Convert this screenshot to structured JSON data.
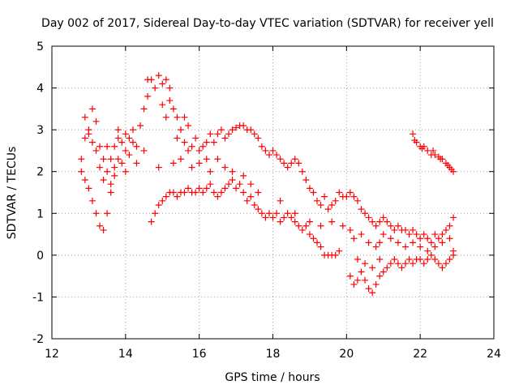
{
  "chart_data": {
    "type": "scatter",
    "title": "Day 002 of 2017, Sidereal Day-to-day VTEC variation (SDTVAR) for receiver yell",
    "xlabel": "GPS time / hours",
    "ylabel": "SDTVAR / TECUs",
    "xlim": [
      12,
      24
    ],
    "ylim": [
      -2,
      5
    ],
    "x_ticks": [
      "12",
      "14",
      "16",
      "18",
      "20",
      "22",
      "24"
    ],
    "y_ticks": [
      "-2",
      "-1",
      "0",
      "1",
      "2",
      "3",
      "4",
      "5"
    ],
    "grid": true,
    "marker": "+",
    "marker_color": "#ff0000",
    "series": [
      {
        "name": "upper-track",
        "points": [
          [
            12.8,
            2.3
          ],
          [
            12.9,
            2.8
          ],
          [
            13.0,
            3.0
          ],
          [
            13.1,
            2.7
          ],
          [
            13.2,
            3.2
          ],
          [
            13.3,
            2.6
          ],
          [
            13.4,
            2.3
          ],
          [
            13.5,
            2.0
          ],
          [
            13.6,
            2.3
          ],
          [
            13.7,
            2.6
          ],
          [
            13.8,
            3.0
          ],
          [
            13.9,
            2.7
          ],
          [
            14.0,
            2.5
          ],
          [
            14.1,
            2.8
          ],
          [
            14.2,
            3.0
          ],
          [
            14.3,
            2.6
          ],
          [
            14.4,
            3.1
          ],
          [
            14.5,
            3.5
          ],
          [
            14.6,
            3.8
          ],
          [
            14.7,
            4.2
          ],
          [
            14.8,
            4.0
          ],
          [
            14.9,
            4.3
          ],
          [
            15.0,
            4.1
          ],
          [
            15.1,
            4.2
          ],
          [
            15.2,
            4.0
          ],
          [
            15.3,
            3.5
          ],
          [
            15.4,
            3.3
          ],
          [
            15.5,
            3.0
          ],
          [
            15.6,
            2.7
          ],
          [
            15.7,
            2.5
          ],
          [
            15.8,
            2.6
          ],
          [
            15.9,
            2.8
          ],
          [
            16.0,
            2.5
          ],
          [
            16.1,
            2.6
          ],
          [
            16.2,
            2.7
          ],
          [
            16.3,
            2.9
          ],
          [
            16.4,
            2.7
          ],
          [
            16.5,
            2.9
          ],
          [
            16.6,
            3.0
          ],
          [
            16.7,
            2.8
          ],
          [
            16.8,
            2.9
          ],
          [
            16.9,
            3.0
          ],
          [
            17.0,
            3.05
          ],
          [
            17.1,
            3.1
          ],
          [
            17.2,
            3.1
          ],
          [
            17.3,
            3.0
          ],
          [
            17.4,
            3.0
          ],
          [
            17.5,
            2.9
          ],
          [
            17.6,
            2.8
          ],
          [
            17.7,
            2.6
          ],
          [
            17.8,
            2.5
          ],
          [
            17.9,
            2.4
          ],
          [
            18.0,
            2.5
          ],
          [
            18.1,
            2.4
          ],
          [
            18.2,
            2.3
          ],
          [
            18.3,
            2.2
          ],
          [
            18.4,
            2.1
          ],
          [
            18.5,
            2.2
          ],
          [
            18.6,
            2.3
          ],
          [
            18.7,
            2.2
          ],
          [
            18.8,
            2.0
          ],
          [
            18.9,
            1.8
          ],
          [
            19.0,
            1.6
          ],
          [
            19.1,
            1.5
          ],
          [
            19.2,
            1.3
          ],
          [
            19.3,
            1.2
          ],
          [
            19.4,
            1.4
          ],
          [
            19.5,
            1.1
          ],
          [
            19.6,
            1.2
          ],
          [
            19.7,
            1.3
          ],
          [
            19.8,
            1.5
          ],
          [
            19.9,
            1.4
          ],
          [
            20.0,
            1.4
          ],
          [
            20.1,
            1.5
          ],
          [
            20.2,
            1.4
          ],
          [
            20.3,
            1.3
          ],
          [
            20.4,
            1.1
          ],
          [
            20.5,
            1.0
          ],
          [
            20.6,
            0.9
          ],
          [
            20.7,
            0.8
          ],
          [
            20.8,
            0.7
          ],
          [
            20.9,
            0.8
          ],
          [
            21.0,
            0.9
          ],
          [
            21.1,
            0.8
          ],
          [
            21.2,
            0.7
          ],
          [
            21.3,
            0.6
          ],
          [
            21.4,
            0.7
          ],
          [
            21.5,
            0.6
          ],
          [
            21.6,
            0.6
          ],
          [
            21.7,
            0.5
          ],
          [
            21.8,
            0.6
          ],
          [
            21.9,
            0.5
          ],
          [
            22.0,
            0.4
          ],
          [
            22.1,
            0.5
          ],
          [
            22.2,
            0.4
          ],
          [
            22.3,
            0.3
          ],
          [
            22.4,
            0.5
          ],
          [
            22.5,
            0.4
          ],
          [
            22.6,
            0.5
          ],
          [
            22.7,
            0.6
          ],
          [
            22.8,
            0.7
          ],
          [
            22.9,
            0.9
          ]
        ]
      },
      {
        "name": "lower-track",
        "points": [
          [
            12.8,
            2.0
          ],
          [
            12.9,
            1.8
          ],
          [
            13.0,
            1.6
          ],
          [
            13.1,
            1.3
          ],
          [
            13.2,
            1.0
          ],
          [
            13.3,
            0.7
          ],
          [
            13.4,
            0.6
          ],
          [
            13.5,
            1.0
          ],
          [
            13.6,
            1.5
          ],
          [
            13.7,
            1.9
          ],
          [
            13.8,
            2.3
          ],
          [
            13.9,
            2.2
          ],
          [
            14.0,
            2.0
          ],
          [
            14.1,
            2.4
          ],
          [
            14.2,
            2.7
          ],
          [
            14.7,
            0.8
          ],
          [
            14.8,
            1.0
          ],
          [
            14.9,
            1.2
          ],
          [
            15.0,
            1.3
          ],
          [
            15.1,
            1.4
          ],
          [
            15.2,
            1.5
          ],
          [
            15.3,
            1.5
          ],
          [
            15.4,
            1.4
          ],
          [
            15.5,
            1.5
          ],
          [
            15.6,
            1.5
          ],
          [
            15.7,
            1.6
          ],
          [
            15.8,
            1.5
          ],
          [
            15.9,
            1.5
          ],
          [
            16.0,
            1.6
          ],
          [
            16.1,
            1.5
          ],
          [
            16.2,
            1.6
          ],
          [
            16.3,
            1.7
          ],
          [
            16.4,
            1.5
          ],
          [
            16.5,
            1.4
          ],
          [
            16.6,
            1.5
          ],
          [
            16.7,
            1.6
          ],
          [
            16.8,
            1.7
          ],
          [
            16.9,
            1.8
          ],
          [
            17.0,
            1.6
          ],
          [
            17.1,
            1.7
          ],
          [
            17.2,
            1.5
          ],
          [
            17.3,
            1.3
          ],
          [
            17.4,
            1.4
          ],
          [
            17.5,
            1.2
          ],
          [
            17.6,
            1.1
          ],
          [
            17.7,
            1.0
          ],
          [
            17.8,
            0.9
          ],
          [
            17.9,
            1.0
          ],
          [
            18.0,
            0.9
          ],
          [
            18.1,
            1.0
          ],
          [
            18.2,
            0.8
          ],
          [
            18.3,
            0.9
          ],
          [
            18.4,
            1.0
          ],
          [
            18.5,
            0.9
          ],
          [
            18.6,
            0.8
          ],
          [
            18.7,
            0.7
          ],
          [
            18.8,
            0.6
          ],
          [
            18.9,
            0.7
          ],
          [
            19.0,
            0.5
          ],
          [
            19.1,
            0.4
          ],
          [
            19.2,
            0.3
          ],
          [
            19.3,
            0.2
          ],
          [
            19.4,
            0.0
          ],
          [
            19.5,
            0.0
          ],
          [
            19.6,
            0.0
          ],
          [
            19.7,
            0.0
          ],
          [
            19.8,
            0.1
          ],
          [
            20.1,
            -0.5
          ],
          [
            20.2,
            -0.7
          ],
          [
            20.3,
            -0.6
          ],
          [
            20.4,
            -0.4
          ],
          [
            20.5,
            -0.6
          ],
          [
            20.6,
            -0.8
          ],
          [
            20.7,
            -0.9
          ],
          [
            20.8,
            -0.7
          ],
          [
            20.9,
            -0.5
          ],
          [
            21.0,
            -0.4
          ],
          [
            21.1,
            -0.3
          ],
          [
            21.2,
            -0.2
          ],
          [
            21.3,
            -0.1
          ],
          [
            21.4,
            -0.2
          ],
          [
            21.5,
            -0.3
          ],
          [
            21.6,
            -0.2
          ],
          [
            21.7,
            -0.1
          ],
          [
            21.8,
            -0.2
          ],
          [
            21.9,
            -0.1
          ],
          [
            22.0,
            -0.1
          ],
          [
            22.1,
            -0.2
          ],
          [
            22.2,
            -0.1
          ],
          [
            22.3,
            0.0
          ],
          [
            22.4,
            -0.1
          ],
          [
            22.5,
            -0.2
          ],
          [
            22.6,
            -0.3
          ],
          [
            22.7,
            -0.2
          ],
          [
            22.8,
            -0.1
          ],
          [
            22.9,
            0.1
          ]
        ]
      },
      {
        "name": "scatter-cluster",
        "points": [
          [
            12.9,
            3.3
          ],
          [
            13.0,
            2.9
          ],
          [
            13.1,
            3.5
          ],
          [
            13.2,
            2.5
          ],
          [
            13.3,
            2.1
          ],
          [
            13.4,
            1.8
          ],
          [
            13.5,
            2.6
          ],
          [
            13.6,
            1.7
          ],
          [
            13.7,
            2.1
          ],
          [
            13.8,
            2.8
          ],
          [
            14.0,
            2.9
          ],
          [
            14.3,
            2.2
          ],
          [
            14.5,
            2.5
          ],
          [
            14.6,
            4.2
          ],
          [
            14.9,
            2.1
          ],
          [
            15.0,
            3.6
          ],
          [
            15.1,
            3.3
          ],
          [
            15.2,
            3.7
          ],
          [
            15.3,
            2.2
          ],
          [
            15.4,
            2.8
          ],
          [
            15.5,
            2.3
          ],
          [
            15.6,
            3.3
          ],
          [
            15.7,
            3.1
          ],
          [
            15.8,
            2.1
          ],
          [
            16.0,
            2.2
          ],
          [
            16.2,
            2.3
          ],
          [
            16.3,
            2.0
          ],
          [
            16.5,
            2.3
          ],
          [
            16.7,
            2.1
          ],
          [
            16.9,
            2.0
          ],
          [
            17.2,
            1.9
          ],
          [
            17.4,
            1.7
          ],
          [
            17.6,
            1.5
          ],
          [
            18.2,
            1.3
          ],
          [
            18.6,
            1.0
          ],
          [
            19.0,
            0.8
          ],
          [
            19.3,
            0.7
          ],
          [
            19.6,
            0.8
          ],
          [
            19.9,
            0.7
          ],
          [
            20.1,
            0.6
          ],
          [
            20.2,
            0.4
          ],
          [
            20.4,
            0.5
          ],
          [
            20.6,
            0.3
          ],
          [
            20.8,
            0.2
          ],
          [
            20.9,
            0.3
          ],
          [
            21.0,
            0.5
          ],
          [
            21.2,
            0.4
          ],
          [
            21.4,
            0.3
          ],
          [
            21.6,
            0.2
          ],
          [
            21.8,
            0.3
          ],
          [
            22.0,
            0.2
          ],
          [
            22.2,
            0.1
          ],
          [
            22.4,
            0.2
          ],
          [
            22.6,
            0.3
          ],
          [
            22.8,
            0.4
          ],
          [
            22.9,
            0.0
          ],
          [
            20.3,
            -0.1
          ],
          [
            20.5,
            -0.2
          ],
          [
            20.7,
            -0.3
          ],
          [
            20.9,
            -0.1
          ]
        ]
      },
      {
        "name": "late-segment",
        "points": [
          [
            21.8,
            2.9
          ],
          [
            21.85,
            2.75
          ],
          [
            21.9,
            2.7
          ],
          [
            22.0,
            2.6
          ],
          [
            22.05,
            2.55
          ],
          [
            22.1,
            2.6
          ],
          [
            22.2,
            2.5
          ],
          [
            22.3,
            2.4
          ],
          [
            22.35,
            2.5
          ],
          [
            22.4,
            2.4
          ],
          [
            22.5,
            2.35
          ],
          [
            22.55,
            2.3
          ],
          [
            22.6,
            2.3
          ],
          [
            22.7,
            2.2
          ],
          [
            22.75,
            2.15
          ],
          [
            22.8,
            2.1
          ],
          [
            22.85,
            2.05
          ],
          [
            22.9,
            2.0
          ]
        ]
      }
    ]
  }
}
